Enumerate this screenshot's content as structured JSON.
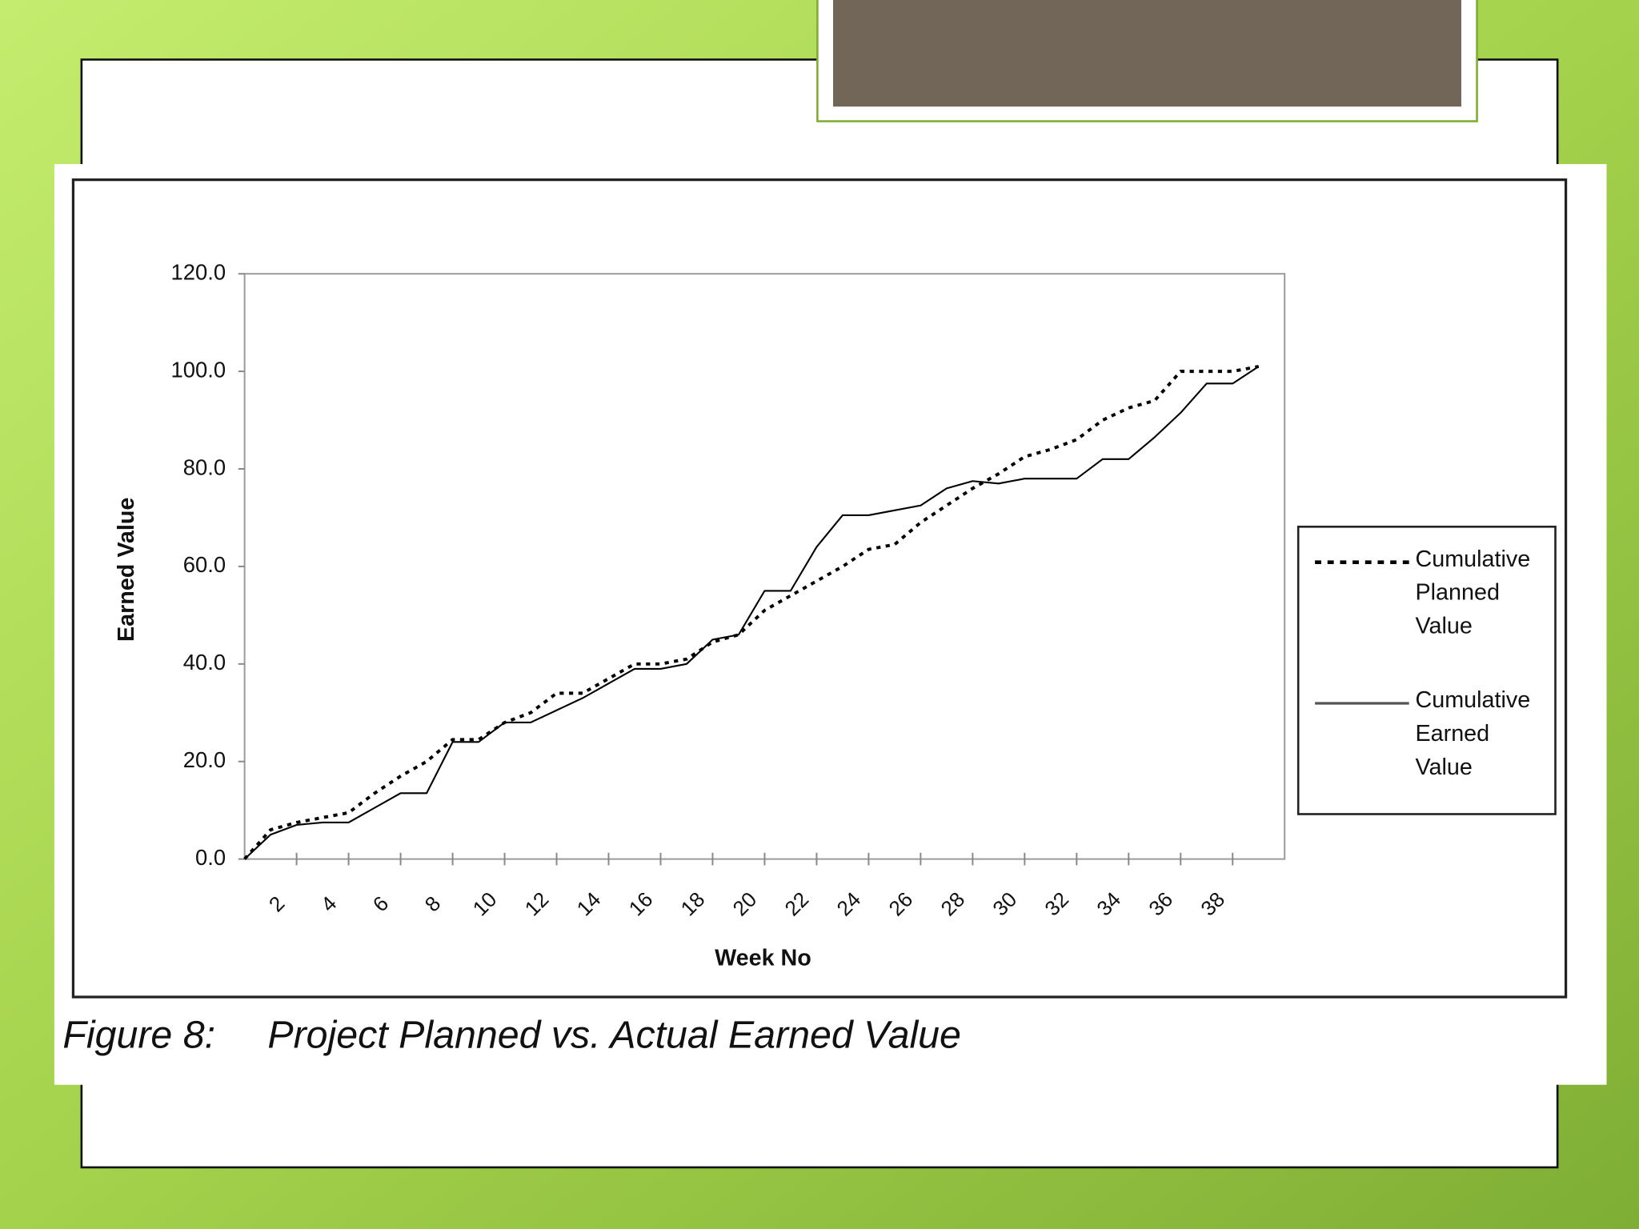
{
  "chart_data": {
    "type": "line",
    "figure_label": "Figure 8:",
    "title": "Project Planned vs. Actual Earned Value",
    "x_label": "Week No",
    "y_label": "Earned Value",
    "x": [
      0,
      1,
      2,
      3,
      4,
      5,
      6,
      7,
      8,
      9,
      10,
      11,
      12,
      13,
      14,
      15,
      16,
      17,
      18,
      19,
      20,
      21,
      22,
      23,
      24,
      25,
      26,
      27,
      28,
      29,
      30,
      31,
      32,
      33,
      34,
      35,
      36,
      37,
      38,
      39
    ],
    "series": [
      {
        "name": "Cumulative Planned Value",
        "color": "#000000",
        "style": "dotted",
        "values": [
          0,
          6,
          7.5,
          8.5,
          9.5,
          13.5,
          17,
          20,
          24.5,
          24.5,
          28,
          30,
          34,
          34,
          37,
          40,
          40,
          41,
          44.5,
          46,
          51,
          54,
          57,
          60,
          63.5,
          64.5,
          69,
          72.5,
          76,
          79,
          82.5,
          84,
          86,
          90,
          92.5,
          94,
          100,
          100,
          100,
          101
        ]
      },
      {
        "name": "Cumulative Earned Value",
        "color": "#000000",
        "style": "solid",
        "values": [
          0,
          5,
          7,
          7.5,
          7.5,
          10.5,
          13.5,
          13.5,
          24,
          24,
          28,
          28,
          30.5,
          33,
          36,
          39,
          39,
          40,
          45,
          46,
          55,
          55,
          64,
          70.5,
          70.5,
          71.5,
          72.5,
          76,
          77.5,
          77,
          78,
          78,
          78,
          82,
          82,
          86.5,
          91.5,
          97.5,
          97.5,
          101
        ]
      }
    ],
    "xlim": [
      0,
      40
    ],
    "xticks": [
      2,
      4,
      6,
      8,
      10,
      12,
      14,
      16,
      18,
      20,
      22,
      24,
      26,
      28,
      30,
      32,
      34,
      36,
      38
    ],
    "ylim": [
      0,
      120
    ],
    "yticks": [
      {
        "value": 0,
        "label": "0.0"
      },
      {
        "value": 20,
        "label": "20.0"
      },
      {
        "value": 40,
        "label": "40.0"
      },
      {
        "value": 60,
        "label": "60.0"
      },
      {
        "value": 80,
        "label": "80.0"
      },
      {
        "value": 100,
        "label": "100.0"
      },
      {
        "value": 120,
        "label": "120.0"
      }
    ],
    "legend": "right"
  }
}
